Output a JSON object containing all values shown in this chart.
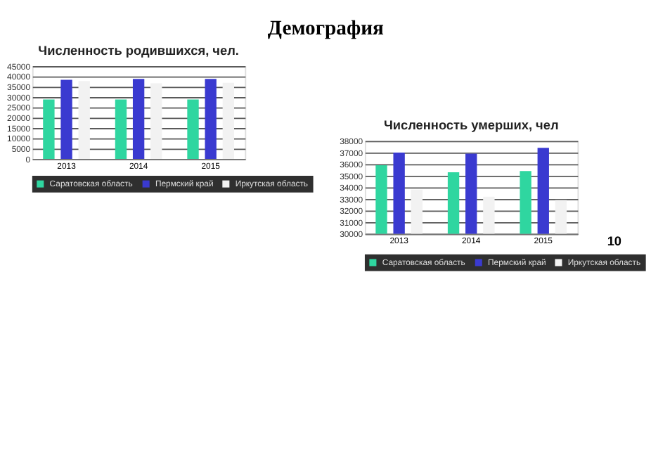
{
  "chart_data": [
    {
      "type": "bar",
      "title": "Численность родившихся, чел.",
      "annotations": [
        "Демография"
      ],
      "categories": [
        "2013",
        "2014",
        "2015"
      ],
      "series": [
        {
          "name": "Саратовская область",
          "color": "#2fd6a0",
          "values": [
            28800,
            28800,
            28800
          ]
        },
        {
          "name": "Пермский край",
          "color": "#3a3ad0",
          "values": [
            38400,
            38800,
            38800
          ]
        },
        {
          "name": "Иркутская область",
          "color": "#f2f2f2",
          "values": [
            37800,
            36700,
            36900
          ]
        }
      ],
      "ylim": [
        0,
        45000
      ],
      "yticks": [
        0,
        5000,
        10000,
        15000,
        20000,
        25000,
        30000,
        35000,
        40000,
        45000
      ],
      "grid": "y",
      "legend": "bottom"
    },
    {
      "type": "bar",
      "title": "Численность  умерших, чел",
      "annotations": [
        "10"
      ],
      "categories": [
        "2013",
        "2014",
        "2015"
      ],
      "series": [
        {
          "name": "Саратовская область",
          "color": "#2fd6a0",
          "values": [
            35900,
            35300,
            35400
          ]
        },
        {
          "name": "Пермский край",
          "color": "#3a3ad0",
          "values": [
            37000,
            36900,
            37400
          ]
        },
        {
          "name": "Иркутская область",
          "color": "#f2f2f2",
          "values": [
            33800,
            33200,
            32900
          ]
        }
      ],
      "ylim": [
        30000,
        38000
      ],
      "yticks": [
        30000,
        31000,
        32000,
        33000,
        34000,
        35000,
        36000,
        37000,
        38000
      ],
      "grid": "y",
      "legend": "bottom"
    }
  ]
}
